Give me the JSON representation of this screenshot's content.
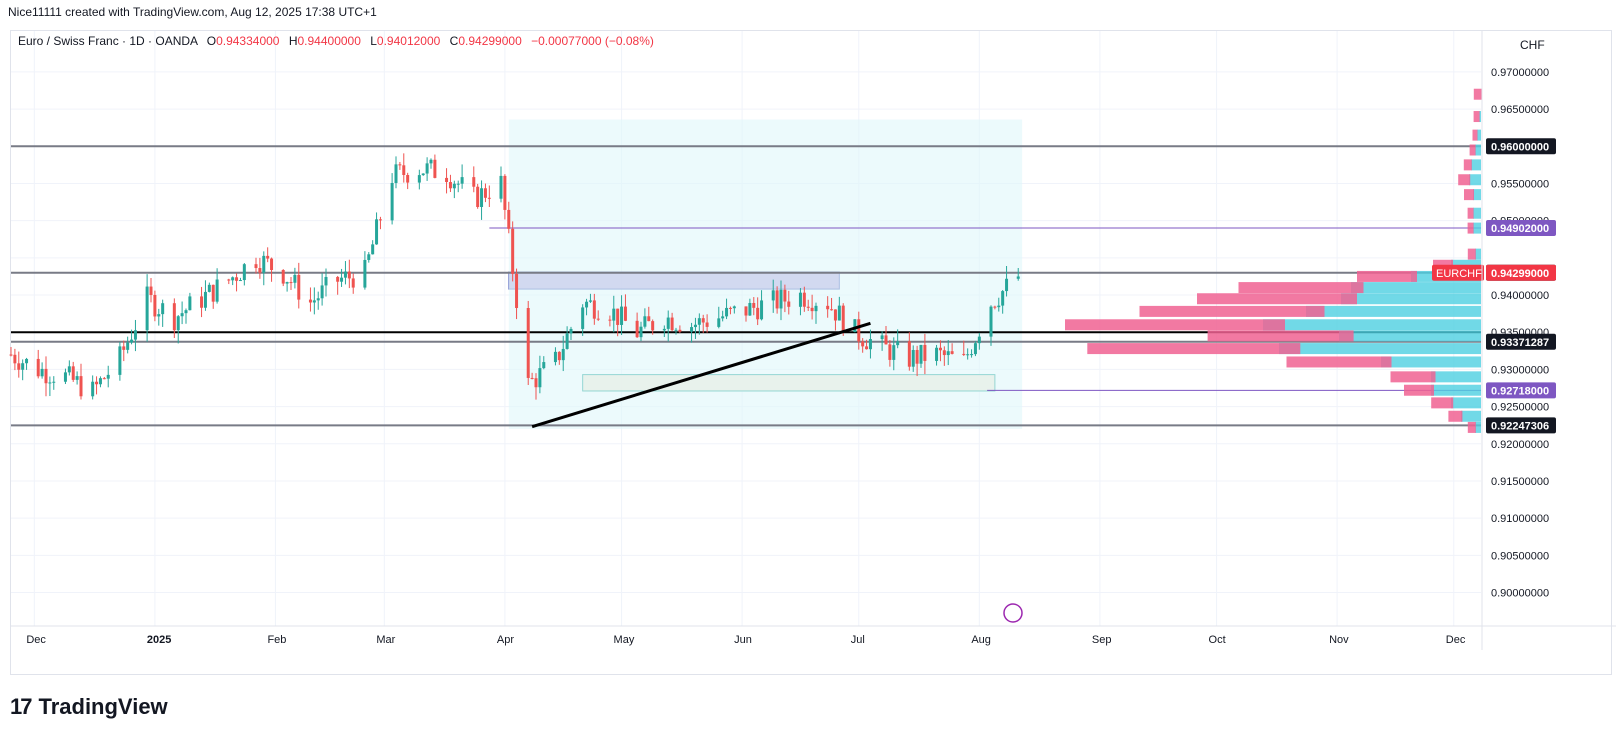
{
  "header": {
    "text": "Nice11111 created with TradingView.com, Aug 12, 2025 17:38 UTC+1"
  },
  "legend": {
    "symbol": "Euro / Swiss Franc · 1D · OANDA",
    "o_label": "O",
    "o_value": "0.94334000",
    "h_label": "H",
    "h_value": "0.94400000",
    "l_label": "L",
    "l_value": "0.94012000",
    "c_label": "C",
    "c_value": "0.94299000",
    "change": "−0.00077000 (−0.08%)"
  },
  "currency": "CHF",
  "footer": {
    "logo_mark": "17",
    "brand": "TradingView"
  },
  "colors": {
    "up": "#26a69a",
    "down": "#ef5350",
    "grid": "#f0f3fa",
    "level_gray": "#787b86",
    "purple": "#7e57c2",
    "black": "#000000",
    "vp_pink": "#f06292",
    "vp_cyan": "#4dd0e1"
  },
  "chart_data": {
    "type": "candlestick",
    "symbol": "EURCHF",
    "timeframe": "1D",
    "ylim": [
      0.8955,
      0.9755
    ],
    "y_ticks": [
      "0.97000000",
      "0.96500000",
      "0.95500000",
      "0.95000000",
      "0.94000000",
      "0.93500000",
      "0.93000000",
      "0.92500000",
      "0.92000000",
      "0.91500000",
      "0.91000000",
      "0.90500000",
      "0.90000000"
    ],
    "x_labels": [
      "Dec",
      "2025",
      "Feb",
      "Mar",
      "Apr",
      "May",
      "Jun",
      "Jul",
      "Aug",
      "Sep",
      "Oct",
      "Nov",
      "Dec"
    ],
    "price_labels": [
      {
        "text": "0.96000000",
        "value": 0.96,
        "style": "dark"
      },
      {
        "text": "0.94902000",
        "value": 0.94902,
        "style": "purple"
      },
      {
        "text": "0.94300000",
        "value": 0.943,
        "style": "dark"
      },
      {
        "text": "0.94299000",
        "value": 0.94299,
        "style": "red",
        "tag": "EURCHF"
      },
      {
        "text": "0.93371287",
        "value": 0.93371287,
        "style": "dark"
      },
      {
        "text": "0.92718000",
        "value": 0.92718,
        "style": "purple"
      },
      {
        "text": "0.92247306",
        "value": 0.92247306,
        "style": "dark"
      }
    ],
    "horizontal_levels": [
      0.96,
      0.943,
      0.935,
      0.93371287,
      0.92247306
    ],
    "purple_levels": [
      {
        "value": 0.94902,
        "from": "2025-03-28"
      },
      {
        "value": 0.92718,
        "from": "2025-08-03"
      }
    ],
    "zones": [
      {
        "name": "resistance-box",
        "from": "2025-04-02",
        "to": "2025-06-26",
        "top": 0.9431,
        "bottom": 0.9408,
        "color": "#b39ddb"
      },
      {
        "name": "support-box",
        "from": "2025-04-21",
        "to": "2025-08-05",
        "top": 0.9293,
        "bottom": 0.9271,
        "color": "#f5e6cf"
      },
      {
        "name": "range-area",
        "from": "2025-04-02",
        "to": "2025-08-12",
        "top": 0.9636,
        "bottom": 0.922,
        "color": "#e0f7fa"
      }
    ],
    "trendline": {
      "from": {
        "date": "2025-04-08",
        "value": 0.9223
      },
      "to": {
        "date": "2025-07-04",
        "value": 0.9362
      }
    },
    "close_path": [
      [
        "2024-11-25",
        0.932
      ],
      [
        "2024-12-02",
        0.93
      ],
      [
        "2024-12-09",
        0.929
      ],
      [
        "2024-12-16",
        0.927
      ],
      [
        "2024-12-23",
        0.9315
      ],
      [
        "2024-12-30",
        0.9395
      ],
      [
        "2025-01-06",
        0.937
      ],
      [
        "2025-01-13",
        0.9395
      ],
      [
        "2025-01-20",
        0.942
      ],
      [
        "2025-01-27",
        0.945
      ],
      [
        "2025-02-03",
        0.943
      ],
      [
        "2025-02-10",
        0.939
      ],
      [
        "2025-02-17",
        0.942
      ],
      [
        "2025-02-24",
        0.943
      ],
      [
        "2025-03-03",
        0.956
      ],
      [
        "2025-03-10",
        0.957
      ],
      [
        "2025-03-17",
        0.9565
      ],
      [
        "2025-03-24",
        0.953
      ],
      [
        "2025-03-31",
        0.955
      ],
      [
        "2025-04-07",
        0.928
      ],
      [
        "2025-04-14",
        0.931
      ],
      [
        "2025-04-21",
        0.939
      ],
      [
        "2025-04-28",
        0.938
      ],
      [
        "2025-05-05",
        0.935
      ],
      [
        "2025-05-12",
        0.937
      ],
      [
        "2025-05-19",
        0.936
      ],
      [
        "2025-05-26",
        0.937
      ],
      [
        "2025-06-02",
        0.938
      ],
      [
        "2025-06-09",
        0.939
      ],
      [
        "2025-06-16",
        0.94
      ],
      [
        "2025-06-23",
        0.939
      ],
      [
        "2025-06-30",
        0.935
      ],
      [
        "2025-07-07",
        0.933
      ],
      [
        "2025-07-14",
        0.9315
      ],
      [
        "2025-07-21",
        0.932
      ],
      [
        "2025-07-28",
        0.931
      ],
      [
        "2025-08-04",
        0.939
      ],
      [
        "2025-08-12",
        0.94299
      ]
    ],
    "volume_profile": [
      {
        "price": 0.967,
        "pink": 8,
        "cyan": 0
      },
      {
        "price": 0.964,
        "pink": 6,
        "cyan": 2
      },
      {
        "price": 0.9615,
        "pink": 5,
        "cyan": 4
      },
      {
        "price": 0.9595,
        "pink": 6,
        "cyan": 6
      },
      {
        "price": 0.9575,
        "pink": 8,
        "cyan": 10
      },
      {
        "price": 0.9555,
        "pink": 12,
        "cyan": 12
      },
      {
        "price": 0.9535,
        "pink": 10,
        "cyan": 8
      },
      {
        "price": 0.951,
        "pink": 6,
        "cyan": 8
      },
      {
        "price": 0.949,
        "pink": 6,
        "cyan": 8
      },
      {
        "price": 0.9455,
        "pink": 8,
        "cyan": 6
      },
      {
        "price": 0.944,
        "pink": 20,
        "cyan": 30
      },
      {
        "price": 0.9425,
        "pink": 60,
        "cyan": 70
      },
      {
        "price": 0.941,
        "pink": 125,
        "cyan": 130
      },
      {
        "price": 0.9395,
        "pink": 160,
        "cyan": 140
      },
      {
        "price": 0.9378,
        "pink": 185,
        "cyan": 175
      },
      {
        "price": 0.936,
        "pink": 220,
        "cyan": 218
      },
      {
        "price": 0.9345,
        "pink": 146,
        "cyan": 142
      },
      {
        "price": 0.9328,
        "pink": 213,
        "cyan": 202
      },
      {
        "price": 0.931,
        "pink": 105,
        "cyan": 100
      },
      {
        "price": 0.929,
        "pink": 45,
        "cyan": 50
      },
      {
        "price": 0.9272,
        "pink": 30,
        "cyan": 50
      },
      {
        "price": 0.9255,
        "pink": 22,
        "cyan": 30
      },
      {
        "price": 0.9237,
        "pink": 14,
        "cyan": 20
      },
      {
        "price": 0.9222,
        "pink": 8,
        "cyan": 6
      }
    ]
  }
}
